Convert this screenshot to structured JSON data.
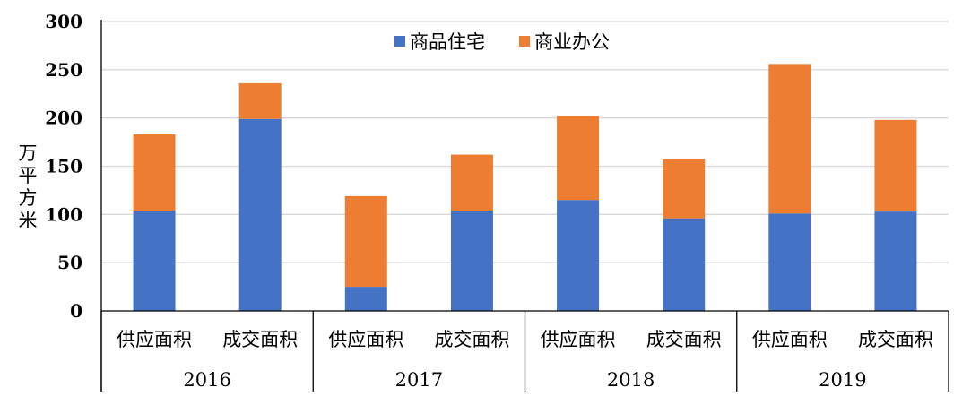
{
  "chart_data": {
    "type": "bar",
    "stacked": true,
    "ylabel": "万平方米",
    "ylim": [
      0,
      300
    ],
    "yticks": [
      0,
      50,
      100,
      150,
      200,
      250,
      300
    ],
    "grid": true,
    "legend_position": "top-center",
    "groups": [
      "2016",
      "2017",
      "2018",
      "2019"
    ],
    "categories": [
      "供应面积",
      "成交面积",
      "供应面积",
      "成交面积",
      "供应面积",
      "成交面积",
      "供应面积",
      "成交面积"
    ],
    "series": [
      {
        "name": "商品住宅",
        "color": "#4472C4",
        "values": [
          104,
          199,
          25,
          104,
          115,
          96,
          101,
          103
        ]
      },
      {
        "name": "商业办公",
        "color": "#ED7D31",
        "values": [
          79,
          37,
          94,
          58,
          87,
          61,
          155,
          95
        ]
      }
    ]
  }
}
